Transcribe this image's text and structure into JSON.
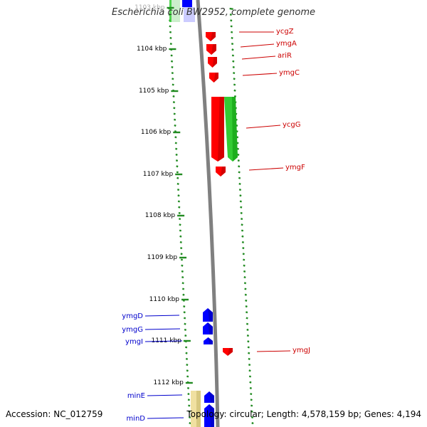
{
  "title": "Escherichia coli BW2952, complete genome",
  "accession": "Accession: NC_012759",
  "topology": "Topology: circular; Length: 4,578,159 bp; Genes: 4,194",
  "colors": {
    "tick": "#228B22",
    "backbone": "#808080",
    "forward_gene": "#0000ff",
    "reverse_gene": "#ff0000",
    "rrna": "#33cc33",
    "other_feature": "#f0e0a0",
    "forward_label": "#0000cc",
    "reverse_label": "#cc0000"
  },
  "kbp_labels": [
    "1103 kbp",
    "1104 kbp",
    "1105 kbp",
    "1106 kbp",
    "1107 kbp",
    "1108 kbp",
    "1109 kbp",
    "1110 kbp",
    "1111 kbp",
    "1112 kbp"
  ],
  "right_genes": [
    {
      "label": "ycgZ"
    },
    {
      "label": "ymgA"
    },
    {
      "label": "ariR"
    },
    {
      "label": "ymgC"
    },
    {
      "label": "ycgG"
    },
    {
      "label": "ymgF"
    },
    {
      "label": "ymgJ"
    }
  ],
  "left_genes": [
    {
      "label": "ymgD"
    },
    {
      "label": "ymgG"
    },
    {
      "label": "ymgI"
    },
    {
      "label": "minE"
    },
    {
      "label": "minD"
    }
  ]
}
